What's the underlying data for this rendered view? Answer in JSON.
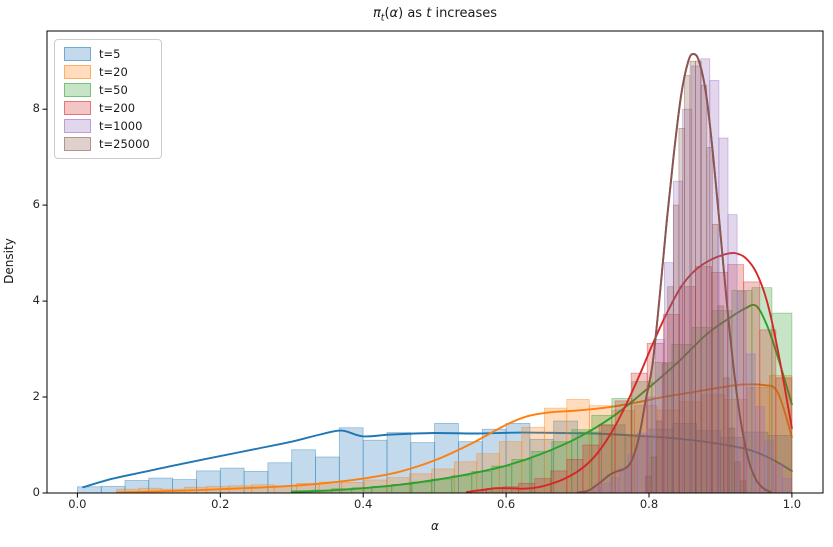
{
  "title": {
    "pi": "π",
    "sub": "t",
    "open_paren": "(",
    "alpha": "α",
    "close_paren": ")",
    "mid_text": " as ",
    "t_var": "t",
    "end_text": " increases"
  },
  "axes": {
    "xlabel": "α",
    "ylabel": "Density",
    "xtick_labels": [
      "0.0",
      "0.2",
      "0.4",
      "0.6",
      "0.8",
      "1.0"
    ],
    "ytick_labels": [
      "0",
      "2",
      "4",
      "6",
      "8"
    ],
    "spine_color": "#000000",
    "tick_color": "#262626"
  },
  "legend": {
    "position": "upper left",
    "labels": [
      "t=5",
      "t=20",
      "t=50",
      "t=200",
      "t=1000",
      "t=25000"
    ]
  },
  "chart_data": {
    "type": "histogram+kde",
    "title": "pi_t(alpha) as t increases",
    "xlabel": "alpha",
    "ylabel": "Density",
    "xlim": [
      -0.0425,
      1.0435
    ],
    "ylim": [
      0,
      9.63
    ],
    "xticks": [
      0.0,
      0.2,
      0.4,
      0.6,
      0.8,
      1.0
    ],
    "yticks": [
      0,
      2,
      4,
      6,
      8
    ],
    "grid": false,
    "legend_position": "upper left",
    "hist_fill_opacity": 0.27,
    "hist_edge_opacity": 0.5,
    "series": [
      {
        "name": "t=5",
        "color": "#1f77b4",
        "hist": {
          "start": 0.0,
          "bin_width": 0.03333,
          "heights": [
            0.13,
            0.14,
            0.26,
            0.31,
            0.28,
            0.46,
            0.52,
            0.45,
            0.63,
            0.9,
            0.75,
            1.36,
            1.1,
            1.26,
            1.05,
            1.45,
            1.07,
            1.33,
            1.45,
            1.12,
            1.5,
            1.27,
            1.42,
            1.17,
            1.33,
            1.45,
            1.3,
            1.16,
            1.27,
            1.2
          ]
        },
        "kde": [
          [
            0.008,
            0.12
          ],
          [
            0.05,
            0.3
          ],
          [
            0.1,
            0.46
          ],
          [
            0.15,
            0.62
          ],
          [
            0.2,
            0.77
          ],
          [
            0.25,
            0.92
          ],
          [
            0.3,
            1.07
          ],
          [
            0.34,
            1.22
          ],
          [
            0.37,
            1.3
          ],
          [
            0.4,
            1.18
          ],
          [
            0.44,
            1.22
          ],
          [
            0.5,
            1.25
          ],
          [
            0.56,
            1.24
          ],
          [
            0.62,
            1.26
          ],
          [
            0.68,
            1.25
          ],
          [
            0.74,
            1.23
          ],
          [
            0.8,
            1.18
          ],
          [
            0.85,
            1.12
          ],
          [
            0.9,
            1.02
          ],
          [
            0.94,
            0.9
          ],
          [
            0.97,
            0.72
          ],
          [
            1.0,
            0.46
          ]
        ]
      },
      {
        "name": "t=20",
        "color": "#ff7f0e",
        "hist": {
          "start": 0.055,
          "bin_width": 0.0315,
          "heights": [
            0.08,
            0.1,
            0.08,
            0.12,
            0.14,
            0.15,
            0.17,
            0.15,
            0.2,
            0.23,
            0.22,
            0.27,
            0.32,
            0.4,
            0.5,
            0.65,
            0.82,
            1.07,
            1.37,
            1.77,
            1.95,
            1.82,
            1.72,
            1.82,
            1.73,
            1.9,
            2.05,
            1.95,
            2.2,
            2.45
          ]
        },
        "kde": [
          [
            0.055,
            0.01
          ],
          [
            0.1,
            0.03
          ],
          [
            0.15,
            0.05
          ],
          [
            0.2,
            0.08
          ],
          [
            0.25,
            0.11
          ],
          [
            0.3,
            0.15
          ],
          [
            0.35,
            0.21
          ],
          [
            0.4,
            0.3
          ],
          [
            0.45,
            0.44
          ],
          [
            0.5,
            0.68
          ],
          [
            0.55,
            1.02
          ],
          [
            0.6,
            1.42
          ],
          [
            0.63,
            1.6
          ],
          [
            0.66,
            1.68
          ],
          [
            0.7,
            1.72
          ],
          [
            0.74,
            1.78
          ],
          [
            0.78,
            1.88
          ],
          [
            0.82,
            2.0
          ],
          [
            0.86,
            2.1
          ],
          [
            0.9,
            2.2
          ],
          [
            0.93,
            2.26
          ],
          [
            0.96,
            2.25
          ],
          [
            0.98,
            2.1
          ],
          [
            1.0,
            1.17
          ]
        ]
      },
      {
        "name": "t=50",
        "color": "#2ca02c",
        "hist": {
          "start": 0.3,
          "bin_width": 0.028,
          "heights": [
            0.05,
            0.06,
            0.09,
            0.11,
            0.14,
            0.18,
            0.23,
            0.29,
            0.36,
            0.45,
            0.56,
            0.7,
            0.87,
            1.07,
            1.32,
            1.62,
            1.97,
            2.32,
            2.72,
            3.1,
            3.45,
            3.8,
            4.22,
            4.28,
            3.75
          ]
        },
        "kde": [
          [
            0.3,
            0.02
          ],
          [
            0.35,
            0.05
          ],
          [
            0.4,
            0.1
          ],
          [
            0.45,
            0.17
          ],
          [
            0.5,
            0.27
          ],
          [
            0.55,
            0.4
          ],
          [
            0.6,
            0.57
          ],
          [
            0.65,
            0.82
          ],
          [
            0.7,
            1.15
          ],
          [
            0.75,
            1.6
          ],
          [
            0.8,
            2.2
          ],
          [
            0.84,
            2.72
          ],
          [
            0.88,
            3.3
          ],
          [
            0.91,
            3.62
          ],
          [
            0.935,
            3.85
          ],
          [
            0.95,
            3.9
          ],
          [
            0.965,
            3.5
          ],
          [
            0.98,
            2.85
          ],
          [
            1.0,
            1.85
          ]
        ]
      },
      {
        "name": "t=200",
        "color": "#d62728",
        "hist": {
          "start": 0.55,
          "bin_width": 0.0225,
          "heights": [
            0.05,
            0.09,
            0.13,
            0.2,
            0.3,
            0.46,
            0.7,
            1.0,
            1.42,
            1.92,
            2.5,
            3.12,
            3.72,
            4.3,
            4.72,
            4.6,
            4.76,
            4.4,
            3.4,
            2.4
          ]
        },
        "kde": [
          [
            0.545,
            0.02
          ],
          [
            0.565,
            0.06
          ],
          [
            0.585,
            0.1
          ],
          [
            0.605,
            0.1
          ],
          [
            0.625,
            0.09
          ],
          [
            0.645,
            0.12
          ],
          [
            0.665,
            0.2
          ],
          [
            0.685,
            0.32
          ],
          [
            0.705,
            0.5
          ],
          [
            0.725,
            0.78
          ],
          [
            0.745,
            1.2
          ],
          [
            0.765,
            1.75
          ],
          [
            0.785,
            2.4
          ],
          [
            0.805,
            3.1
          ],
          [
            0.825,
            3.75
          ],
          [
            0.845,
            4.3
          ],
          [
            0.865,
            4.65
          ],
          [
            0.885,
            4.85
          ],
          [
            0.905,
            4.97
          ],
          [
            0.92,
            5.0
          ],
          [
            0.935,
            4.9
          ],
          [
            0.95,
            4.6
          ],
          [
            0.965,
            4.0
          ],
          [
            0.98,
            3.0
          ],
          [
            1.0,
            1.35
          ]
        ]
      },
      {
        "name": "t=1000",
        "color": "#9467bd",
        "hist": {
          "start": 0.72,
          "bin_width": 0.0127,
          "heights": [
            0.12,
            0.2,
            0.32,
            0.52,
            0.8,
            1.25,
            2.0,
            3.2,
            4.8,
            6.5,
            8.0,
            8.9,
            9.05,
            8.6,
            7.4,
            5.8,
            4.2,
            2.9,
            1.8,
            1.1,
            0.6,
            0.3
          ]
        },
        "kde": [
          [
            0.7,
            0.01
          ],
          [
            0.715,
            0.05
          ],
          [
            0.73,
            0.2
          ],
          [
            0.745,
            0.38
          ],
          [
            0.755,
            0.45
          ],
          [
            0.765,
            0.5
          ],
          [
            0.775,
            0.65
          ],
          [
            0.785,
            1.1
          ],
          [
            0.795,
            1.9
          ],
          [
            0.805,
            2.7
          ],
          [
            0.815,
            4.1
          ],
          [
            0.825,
            5.7
          ],
          [
            0.835,
            7.1
          ],
          [
            0.845,
            8.3
          ],
          [
            0.855,
            9.0
          ],
          [
            0.862,
            9.15
          ],
          [
            0.87,
            9.0
          ],
          [
            0.88,
            8.3
          ],
          [
            0.89,
            7.0
          ],
          [
            0.9,
            5.4
          ],
          [
            0.91,
            3.8
          ],
          [
            0.92,
            2.4
          ],
          [
            0.93,
            1.35
          ],
          [
            0.94,
            0.65
          ],
          [
            0.95,
            0.27
          ],
          [
            0.96,
            0.1
          ],
          [
            0.97,
            0.02
          ]
        ]
      },
      {
        "name": "t=25000",
        "color": "#8c564b",
        "hist": {
          "start": 0.795,
          "bin_width": 0.0078,
          "heights": [
            0.35,
            0.75,
            1.5,
            2.7,
            4.3,
            6.0,
            7.6,
            8.7,
            9.0,
            9.0,
            8.5,
            7.2,
            5.6,
            3.9,
            2.4,
            1.35,
            0.65,
            0.25
          ]
        },
        "kde": [
          [
            0.7,
            0.01
          ],
          [
            0.715,
            0.05
          ],
          [
            0.73,
            0.2
          ],
          [
            0.745,
            0.38
          ],
          [
            0.755,
            0.45
          ],
          [
            0.765,
            0.5
          ],
          [
            0.775,
            0.65
          ],
          [
            0.785,
            1.1
          ],
          [
            0.795,
            1.9
          ],
          [
            0.805,
            2.7
          ],
          [
            0.815,
            4.1
          ],
          [
            0.825,
            5.7
          ],
          [
            0.835,
            7.1
          ],
          [
            0.845,
            8.3
          ],
          [
            0.855,
            9.0
          ],
          [
            0.862,
            9.15
          ],
          [
            0.87,
            9.0
          ],
          [
            0.88,
            8.3
          ],
          [
            0.89,
            7.0
          ],
          [
            0.9,
            5.4
          ],
          [
            0.91,
            3.8
          ],
          [
            0.92,
            2.4
          ],
          [
            0.93,
            1.35
          ],
          [
            0.94,
            0.65
          ],
          [
            0.95,
            0.27
          ],
          [
            0.96,
            0.1
          ],
          [
            0.97,
            0.02
          ]
        ]
      }
    ]
  }
}
